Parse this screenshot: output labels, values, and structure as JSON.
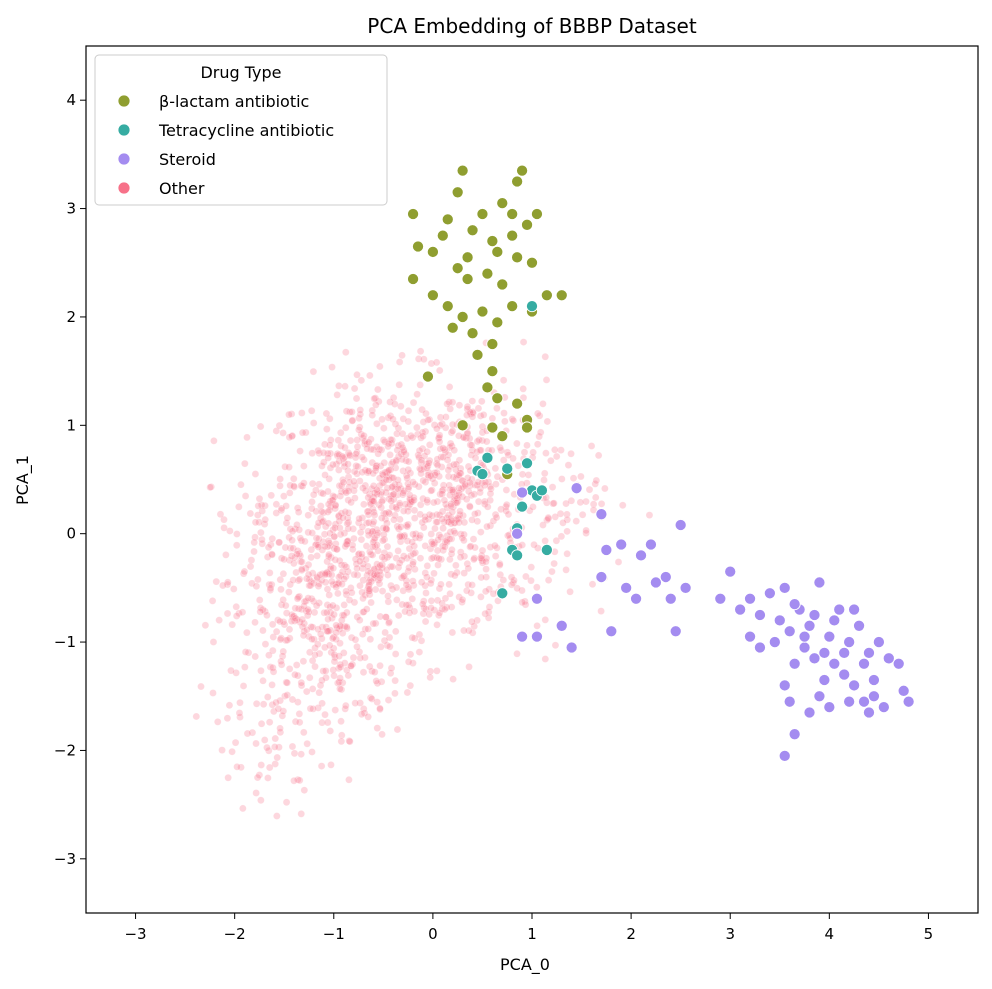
{
  "chart_data": {
    "type": "scatter",
    "title": "PCA Embedding of BBBP Dataset",
    "xlabel": "PCA_0",
    "ylabel": "PCA_1",
    "xlim": [
      -3.5,
      5.5
    ],
    "ylim": [
      -3.5,
      4.5
    ],
    "xticks": [
      -3,
      -2,
      -1,
      0,
      1,
      2,
      3,
      4,
      5
    ],
    "yticks": [
      -3,
      -2,
      -1,
      0,
      1,
      2,
      3,
      4
    ],
    "grid": false,
    "legend": {
      "title": "Drug Type",
      "placement": "top-left"
    },
    "series": [
      {
        "name": "β-lactam antibiotic",
        "color": "#8f9e30",
        "points": [
          [
            0.3,
            3.35
          ],
          [
            0.9,
            3.35
          ],
          [
            0.85,
            3.25
          ],
          [
            0.7,
            3.05
          ],
          [
            0.15,
            2.9
          ],
          [
            -0.2,
            2.95
          ],
          [
            0.5,
            2.95
          ],
          [
            1.05,
            2.95
          ],
          [
            0.0,
            2.6
          ],
          [
            0.25,
            2.45
          ],
          [
            0.35,
            2.55
          ],
          [
            0.55,
            2.4
          ],
          [
            0.7,
            2.3
          ],
          [
            0.85,
            2.55
          ],
          [
            1.0,
            2.5
          ],
          [
            -0.2,
            2.35
          ],
          [
            0.0,
            2.2
          ],
          [
            0.15,
            2.1
          ],
          [
            0.3,
            2.0
          ],
          [
            0.5,
            2.05
          ],
          [
            0.65,
            1.95
          ],
          [
            0.8,
            2.1
          ],
          [
            1.0,
            2.05
          ],
          [
            1.15,
            2.2
          ],
          [
            1.3,
            2.2
          ],
          [
            0.1,
            2.75
          ],
          [
            0.4,
            2.8
          ],
          [
            0.6,
            2.7
          ],
          [
            0.8,
            2.75
          ],
          [
            0.95,
            2.85
          ],
          [
            0.2,
            1.9
          ],
          [
            0.4,
            1.85
          ],
          [
            0.6,
            1.75
          ],
          [
            0.45,
            1.65
          ],
          [
            0.55,
            1.35
          ],
          [
            0.6,
            1.5
          ],
          [
            0.65,
            1.25
          ],
          [
            -0.05,
            1.45
          ],
          [
            0.85,
            1.2
          ],
          [
            0.95,
            1.05
          ],
          [
            0.3,
            1.0
          ],
          [
            0.6,
            0.98
          ],
          [
            0.7,
            0.9
          ],
          [
            0.95,
            0.98
          ],
          [
            0.75,
            0.55
          ],
          [
            0.8,
            2.95
          ],
          [
            0.25,
            3.15
          ],
          [
            -0.15,
            2.65
          ],
          [
            0.35,
            2.35
          ],
          [
            0.65,
            2.6
          ]
        ]
      },
      {
        "name": "Tetracycline antibiotic",
        "color": "#36aca2",
        "points": [
          [
            1.0,
            2.1
          ],
          [
            0.45,
            0.58
          ],
          [
            0.55,
            0.7
          ],
          [
            0.75,
            0.6
          ],
          [
            0.95,
            0.65
          ],
          [
            1.0,
            0.4
          ],
          [
            1.05,
            0.35
          ],
          [
            1.1,
            0.4
          ],
          [
            0.9,
            0.25
          ],
          [
            0.85,
            0.05
          ],
          [
            0.8,
            -0.15
          ],
          [
            0.85,
            -0.2
          ],
          [
            1.15,
            -0.15
          ],
          [
            0.7,
            -0.55
          ],
          [
            0.5,
            0.55
          ]
        ]
      },
      {
        "name": "Steroid",
        "color": "#a48cf0",
        "points": [
          [
            1.45,
            0.42
          ],
          [
            1.7,
            0.18
          ],
          [
            0.85,
            0.0
          ],
          [
            0.9,
            0.38
          ],
          [
            1.75,
            -0.15
          ],
          [
            1.9,
            -0.1
          ],
          [
            2.1,
            -0.2
          ],
          [
            2.2,
            -0.1
          ],
          [
            1.95,
            -0.5
          ],
          [
            2.05,
            -0.6
          ],
          [
            2.25,
            -0.45
          ],
          [
            2.35,
            -0.4
          ],
          [
            2.4,
            -0.6
          ],
          [
            2.5,
            0.08
          ],
          [
            2.55,
            -0.5
          ],
          [
            2.45,
            -0.9
          ],
          [
            1.8,
            -0.9
          ],
          [
            1.7,
            -0.4
          ],
          [
            1.05,
            -0.6
          ],
          [
            1.3,
            -0.85
          ],
          [
            1.4,
            -1.05
          ],
          [
            0.9,
            -0.95
          ],
          [
            1.05,
            -0.95
          ],
          [
            3.0,
            -0.35
          ],
          [
            2.9,
            -0.6
          ],
          [
            3.1,
            -0.7
          ],
          [
            3.2,
            -0.6
          ],
          [
            3.3,
            -0.75
          ],
          [
            3.4,
            -0.55
          ],
          [
            3.5,
            -0.8
          ],
          [
            3.55,
            -0.5
          ],
          [
            3.6,
            -0.9
          ],
          [
            3.7,
            -0.7
          ],
          [
            3.8,
            -0.85
          ],
          [
            3.9,
            -0.45
          ],
          [
            4.0,
            -0.95
          ],
          [
            4.1,
            -0.7
          ],
          [
            4.2,
            -1.0
          ],
          [
            4.3,
            -0.85
          ],
          [
            4.4,
            -1.1
          ],
          [
            4.5,
            -1.0
          ],
          [
            4.6,
            -1.15
          ],
          [
            4.7,
            -1.2
          ],
          [
            4.75,
            -1.45
          ],
          [
            4.8,
            -1.55
          ],
          [
            4.55,
            -1.6
          ],
          [
            4.45,
            -1.5
          ],
          [
            4.35,
            -1.55
          ],
          [
            4.25,
            -1.4
          ],
          [
            4.15,
            -1.3
          ],
          [
            4.05,
            -1.2
          ],
          [
            3.95,
            -1.35
          ],
          [
            3.85,
            -1.15
          ],
          [
            3.75,
            -1.05
          ],
          [
            3.65,
            -1.2
          ],
          [
            3.55,
            -1.4
          ],
          [
            3.6,
            -1.55
          ],
          [
            3.65,
            -1.85
          ],
          [
            3.55,
            -2.05
          ],
          [
            3.8,
            -1.65
          ],
          [
            3.9,
            -1.5
          ],
          [
            4.0,
            -1.6
          ],
          [
            4.2,
            -1.55
          ],
          [
            4.4,
            -1.65
          ],
          [
            3.3,
            -1.05
          ],
          [
            3.2,
            -0.95
          ],
          [
            3.45,
            -1.0
          ],
          [
            3.75,
            -0.95
          ],
          [
            3.95,
            -1.1
          ],
          [
            4.15,
            -1.1
          ],
          [
            4.35,
            -1.2
          ],
          [
            4.05,
            -0.8
          ],
          [
            3.85,
            -0.75
          ],
          [
            3.65,
            -0.65
          ],
          [
            4.25,
            -0.7
          ],
          [
            4.45,
            -1.35
          ]
        ]
      },
      {
        "name": "Other",
        "color": "#f77189",
        "points": []
      }
    ]
  }
}
